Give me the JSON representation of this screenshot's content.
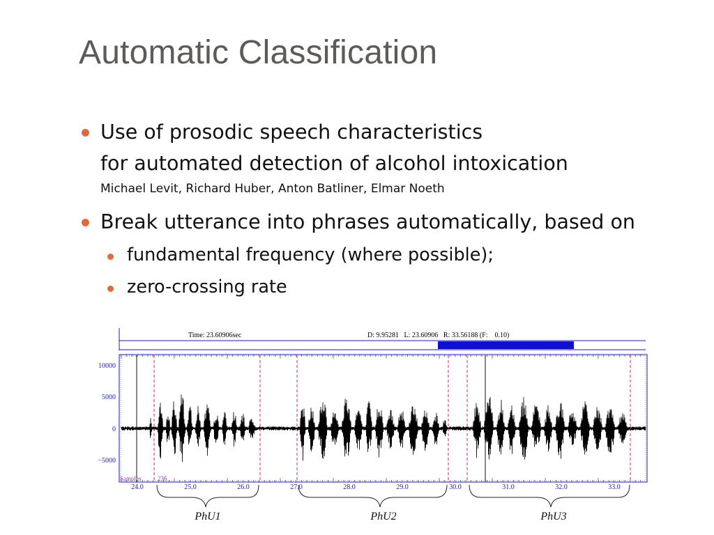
{
  "slide": {
    "title": "Automatic Classification",
    "bullets": [
      {
        "line1": "Use of prosodic speech characteristics",
        "line2": "for automated detection of alcohol intoxication",
        "citation": "Michael Levit, Richard Huber, Anton Batliner, Elmar Noeth"
      },
      {
        "text": "Break utterance into phrases automatically, based on",
        "sub": [
          "fundamental frequency (where possible);",
          "zero-crossing rate"
        ]
      }
    ],
    "bullet_color": "#e06a3b"
  },
  "figure": {
    "header": {
      "time": "Time: 23.60906sec",
      "dlr": "D: 9.95281   L: 23.60906   R: 33.56188 (F:    0.10)"
    },
    "y_ticks": [
      "10000",
      "5000",
      "0",
      "−5000"
    ],
    "x_ticks": [
      "24.0",
      "25.0",
      "26.0",
      "27.0",
      "28.0",
      "29.0",
      "30.0",
      "31.0",
      "32.0",
      "33.0"
    ],
    "samples_label": "Samples",
    "samples_value": "236",
    "phrases": [
      "PhU1",
      "PhU2",
      "PhU3"
    ],
    "selection_color": "#1010d0",
    "axis_color": "#1a1acc",
    "boundary_color": "#e0204a"
  }
}
